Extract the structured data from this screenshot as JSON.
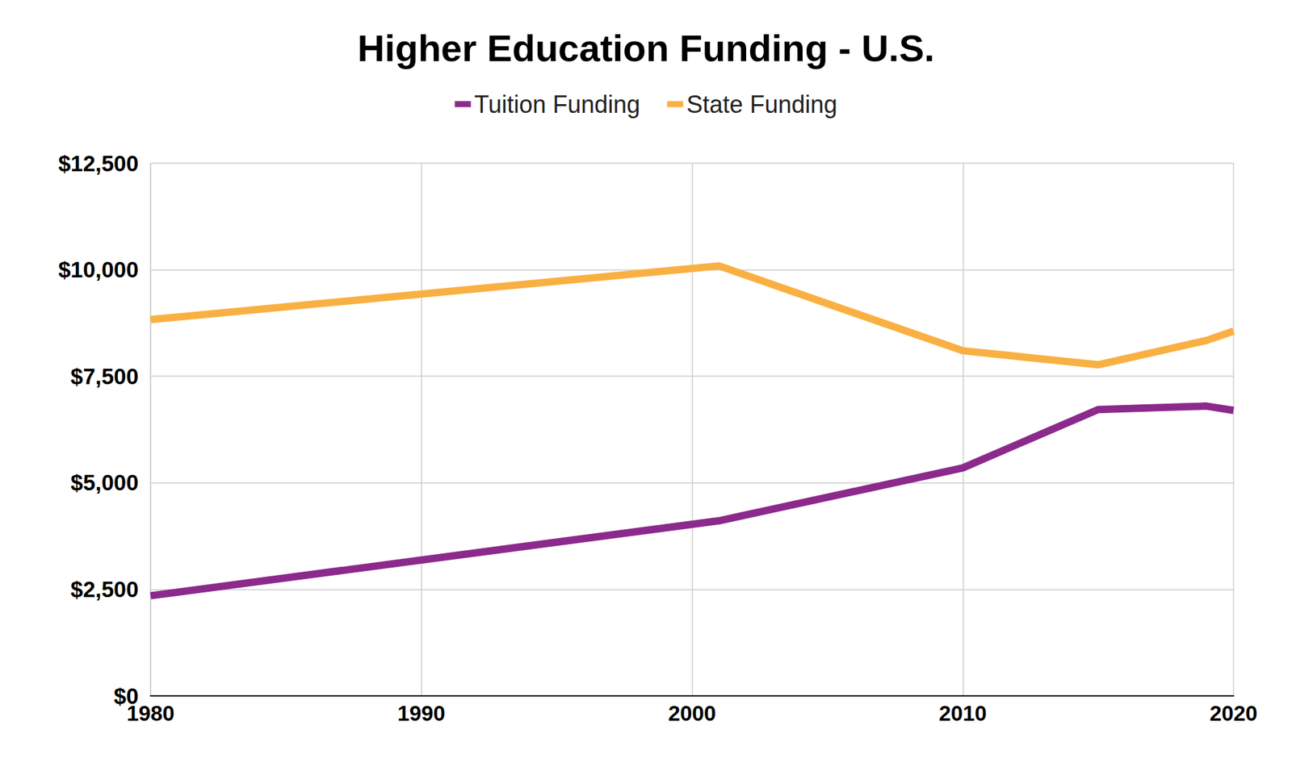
{
  "chart_data": {
    "type": "line",
    "title": "Higher Education Funding - U.S.",
    "x": [
      1980,
      2001,
      2010,
      2015,
      2019,
      2020
    ],
    "series": [
      {
        "name": "Tuition Funding",
        "color": "#8b2a8c",
        "values": [
          2350,
          4110,
          5350,
          6720,
          6800,
          6700
        ]
      },
      {
        "name": "State Funding",
        "color": "#f9b043",
        "values": [
          8830,
          10090,
          8100,
          7770,
          8340,
          8560
        ]
      }
    ],
    "xlim": [
      1980,
      2020
    ],
    "xticks": [
      1980,
      1990,
      2000,
      2010,
      2020
    ],
    "ylim": [
      0,
      12500
    ],
    "yticks": [
      {
        "value": 0,
        "label": "$0"
      },
      {
        "value": 2500,
        "label": "$2,500"
      },
      {
        "value": 5000,
        "label": "$5,000"
      },
      {
        "value": 7500,
        "label": "$7,500"
      },
      {
        "value": 10000,
        "label": "$10,000"
      },
      {
        "value": 12500,
        "label": "$12,500"
      }
    ],
    "grid": true,
    "legend": "top"
  }
}
